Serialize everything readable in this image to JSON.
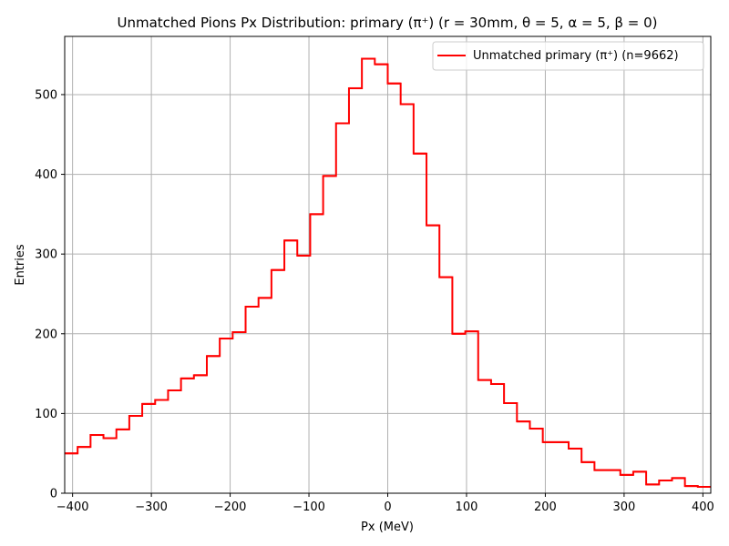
{
  "chart_data": {
    "type": "step",
    "title": "Unmatched Pions Px Distribution: primary (π⁺) (r = 30mm, θ = 5, α = 5, β = 0)",
    "xlabel": "Px (MeV)",
    "ylabel": "Entries",
    "xlim": [
      -410,
      410
    ],
    "ylim": [
      0,
      573
    ],
    "x_ticks": [
      -400,
      -300,
      -200,
      -100,
      0,
      100,
      200,
      300,
      400
    ],
    "x_tick_labels": [
      "−400",
      "−300",
      "−200",
      "−100",
      "0",
      "100",
      "200",
      "300",
      "400"
    ],
    "y_ticks": [
      0,
      100,
      200,
      300,
      400,
      500
    ],
    "y_tick_labels": [
      "0",
      "100",
      "200",
      "300",
      "400",
      "500"
    ],
    "grid": true,
    "legend_position": "top-right",
    "series": [
      {
        "name": "Unmatched primary (π⁺) (n=9662)",
        "color": "#ff0000",
        "bin_edges": [
          -410,
          -393.6,
          -377.2,
          -360.8,
          -344.4,
          -328,
          -311.6,
          -295.2,
          -278.8,
          -262.4,
          -246,
          -229.6,
          -213.2,
          -196.8,
          -180.4,
          -164,
          -147.6,
          -131.2,
          -114.8,
          -98.4,
          -82,
          -65.6,
          -49.2,
          -32.8,
          -16.4,
          0,
          16.4,
          32.8,
          49.2,
          65.6,
          82,
          98.4,
          114.8,
          131.2,
          147.6,
          164,
          180.4,
          196.8,
          213.2,
          229.6,
          246,
          262.4,
          278.8,
          295.2,
          311.6,
          328,
          344.4,
          360.8,
          377.2,
          393.6,
          410
        ],
        "counts": [
          50,
          58,
          73,
          69,
          80,
          97,
          112,
          117,
          129,
          144,
          148,
          172,
          194,
          202,
          234,
          245,
          280,
          317,
          298,
          350,
          398,
          464,
          508,
          545,
          538,
          514,
          488,
          426,
          336,
          271,
          200,
          203,
          142,
          137,
          113,
          90,
          81,
          64,
          64,
          56,
          39,
          29,
          29,
          23,
          27,
          11,
          16,
          19,
          9,
          8
        ]
      }
    ]
  }
}
